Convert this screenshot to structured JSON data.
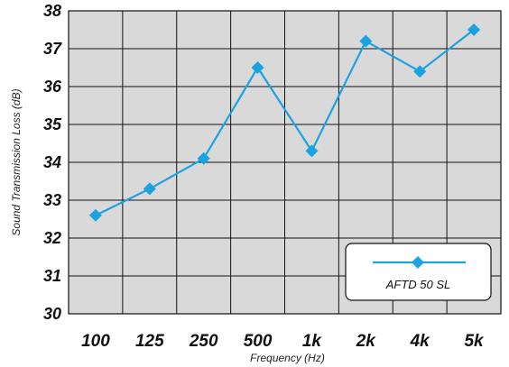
{
  "chart_data": {
    "type": "line",
    "categories": [
      "100",
      "125",
      "250",
      "500",
      "1k",
      "2k",
      "4k",
      "5k"
    ],
    "series": [
      {
        "name": "AFTD 50 SL",
        "values": [
          32.6,
          33.3,
          34.1,
          36.5,
          34.3,
          37.2,
          36.4,
          37.5
        ],
        "color": "#1aa3e0"
      }
    ],
    "xlabel": "Frequency (Hz)",
    "ylabel": "Sound Transmission Loss (dB)",
    "ylim": [
      30,
      38
    ],
    "yticks": [
      30,
      31,
      32,
      33,
      34,
      35,
      36,
      37,
      38
    ],
    "grid": true,
    "legend": "bottom-right",
    "colors": {
      "plot_background": "#d9d9d9",
      "grid": "#111111",
      "line": "#1aa3e0"
    }
  }
}
